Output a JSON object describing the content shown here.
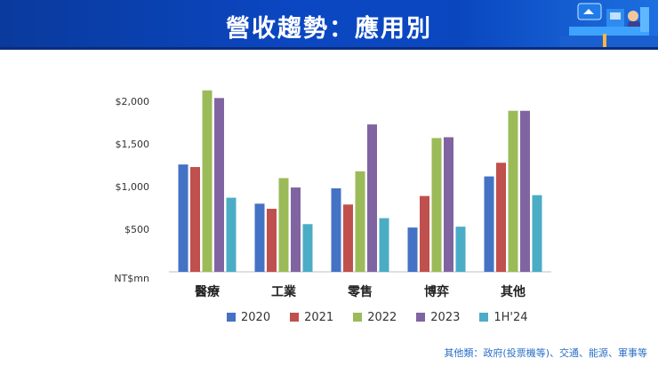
{
  "header": {
    "title": "營收趨勢：應用別"
  },
  "footnote": "其他類：政府(投票機等)、交通、能源、軍事等",
  "chart_data": {
    "type": "bar",
    "title": "營收趨勢：應用別",
    "ylabel": "NT$mn",
    "xlabel": "",
    "ylim": [
      0,
      2200
    ],
    "yticks": [
      500,
      1000,
      1500,
      2000
    ],
    "ytick_labels": [
      "$500",
      "$1,000",
      "$1,500",
      "$2,000"
    ],
    "categories": [
      "醫療",
      "工業",
      "零售",
      "博弈",
      "其他"
    ],
    "series": [
      {
        "name": "2020",
        "color": "#4472c4",
        "values": [
          1260,
          800,
          980,
          520,
          1120
        ]
      },
      {
        "name": "2021",
        "color": "#c0504d",
        "values": [
          1230,
          740,
          790,
          890,
          1280
        ]
      },
      {
        "name": "2022",
        "color": "#9bbb59",
        "values": [
          2130,
          1100,
          1180,
          1570,
          1890
        ]
      },
      {
        "name": "2023",
        "color": "#8064a2",
        "values": [
          2040,
          990,
          1730,
          1580,
          1890
        ]
      },
      {
        "name": "1H'24",
        "color": "#4bacc6",
        "values": [
          870,
          560,
          630,
          530,
          900
        ]
      }
    ],
    "legend_position": "bottom",
    "grid": false
  }
}
